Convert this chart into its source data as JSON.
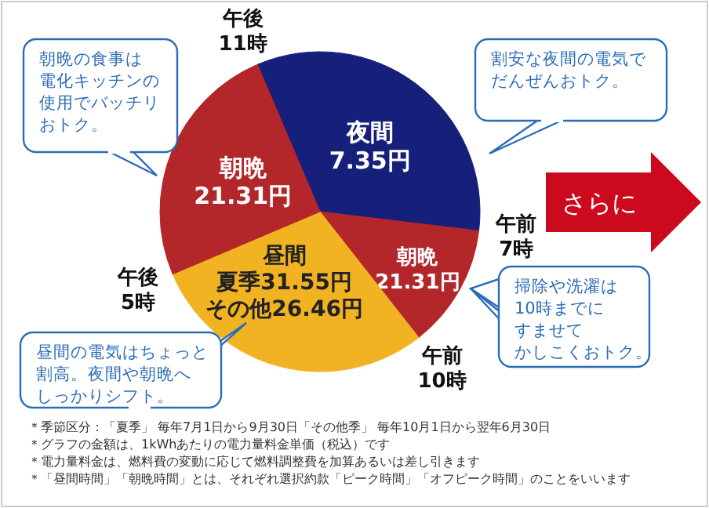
{
  "chart_data": {
    "type": "pie",
    "categories": [
      "夜間",
      "朝晩",
      "昼間",
      "朝晩"
    ],
    "values": [
      33.3,
      12.5,
      29.2,
      25.0
    ],
    "colors": [
      "#16207a",
      "#b3262a",
      "#f2b322",
      "#b3262a"
    ],
    "legend": false,
    "annotations": [
      "午後11時",
      "午前7時",
      "午前10時",
      "午後5時",
      "朝晩の食事は電化キッチンの使用でバッチリおトク。",
      "割安な夜間の電気でだんぜんおトク。",
      "掃除や洗濯は10時までにすませてかしこくおトク。",
      "昼間の電気はちょっと割高。夜間や朝晩へしっかりシフト。",
      "＊季節区分：「夏季」 毎年7月1日から9月30日「その他季」 毎年10月1日から翌年6月30日",
      "＊グラフの金額は、1kWhあたりの電力量料金単価（税込）です",
      "＊電力量料金は、燃料費の変動に応じて燃料調整費を加算あるいは差し引きます",
      "＊「昼間時間」「朝晩時間」とは、それぞれ選択約款「ピーク時間」「オフピーク時間」のことをいいます",
      "さらに",
      "7.35円",
      "21.31円",
      "夏季31.55円その他26.46円",
      "21.31円"
    ]
  }
}
